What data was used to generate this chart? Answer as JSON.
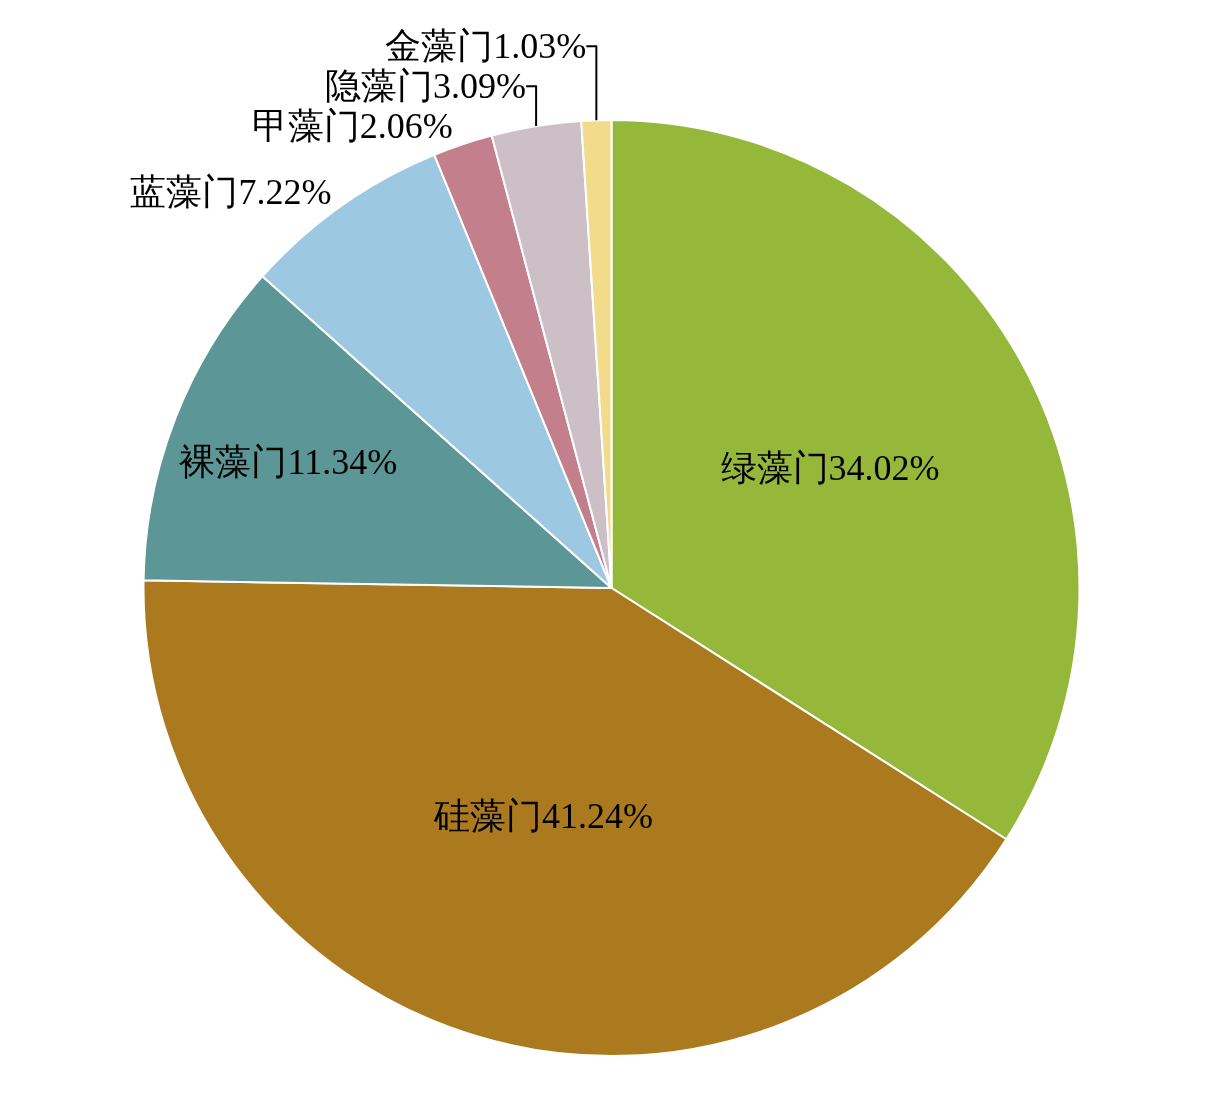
{
  "chart_data": {
    "type": "pie",
    "categories": [
      "绿藻门34.02%",
      "硅藻门41.24%",
      "裸藻门11.34%",
      "蓝藻门7.22%",
      "甲藻门2.06%",
      "隐藻门3.09%",
      "金藻门1.03%"
    ],
    "values": [
      34.02,
      41.24,
      11.34,
      7.22,
      2.06,
      3.09,
      1.03
    ],
    "colors": [
      "#96b83a",
      "#ab7a1f",
      "#5c9696",
      "#9dc8e2",
      "#c3808c",
      "#cdbfc6",
      "#f2dc8c"
    ]
  }
}
